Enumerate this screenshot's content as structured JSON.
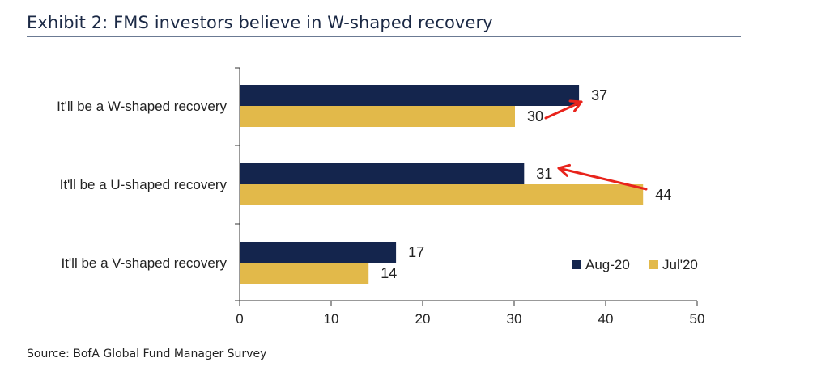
{
  "title": "Exhibit 2: FMS investors believe in W-shaped recovery",
  "source": "Source: BofA Global Fund Manager Survey",
  "colors": {
    "aug": "#14254d",
    "jul": "#e2b94a",
    "arrow": "#e8241c",
    "axis": "#333333",
    "text": "#222222"
  },
  "chart_data": {
    "type": "bar",
    "orientation": "horizontal",
    "title": "Exhibit 2: FMS investors believe in W-shaped recovery",
    "categories": [
      "It'll be a W-shaped recovery",
      "It'll be a U-shaped recovery",
      "It'll be a V-shaped recovery"
    ],
    "series": [
      {
        "name": "Aug-20",
        "values": [
          37,
          31,
          17
        ]
      },
      {
        "name": "Jul'20",
        "values": [
          30,
          44,
          14
        ]
      }
    ],
    "xlim": [
      0,
      50
    ],
    "xticks": [
      0,
      10,
      20,
      30,
      40,
      50
    ],
    "xlabel": "",
    "ylabel": "",
    "grid": false,
    "legend_position": "bottom-right",
    "annotations": [
      {
        "type": "arrow",
        "from_category": 0,
        "from_series": "Jul'20",
        "to_series": "Aug-20",
        "description": "increase"
      },
      {
        "type": "arrow",
        "from_category": 1,
        "from_series": "Jul'20",
        "to_series": "Aug-20",
        "description": "decrease"
      }
    ]
  }
}
